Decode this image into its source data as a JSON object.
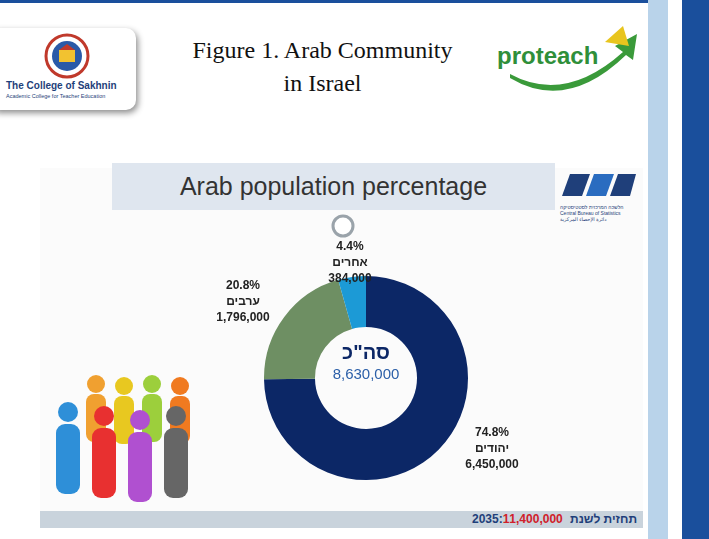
{
  "header": {
    "title": [
      "Figure 1. Arab Community",
      "in Israel"
    ],
    "logos": {
      "college": "The College of Sakhnin",
      "college_subtitle": "Academic College for Teacher Education",
      "proteach": "proteach",
      "cbs": [
        "הלשכה המרכזית לסטטיסטיקה",
        "Central Bureau of Statistics",
        "دائرة الإحصاء المركزية"
      ]
    }
  },
  "chart_data": {
    "type": "doughnut",
    "title": "Arab population percentage",
    "categories": [
      "יהודים",
      "ערבים",
      "אחרים"
    ],
    "values": [
      74.8,
      20.8,
      4.4
    ],
    "value_labels": [
      "74.8%",
      "20.8%",
      "4.4%"
    ],
    "populations": [
      6450000,
      1796000,
      384000
    ],
    "colors": [
      "#0c2766",
      "#6e8f63",
      "#1c9ad6"
    ],
    "data_labels": true,
    "total": {
      "label": "סה\"כ",
      "value": 8630000
    },
    "forecast": {
      "label": "תחזית לשנת 2035:",
      "value": 11400000
    }
  }
}
